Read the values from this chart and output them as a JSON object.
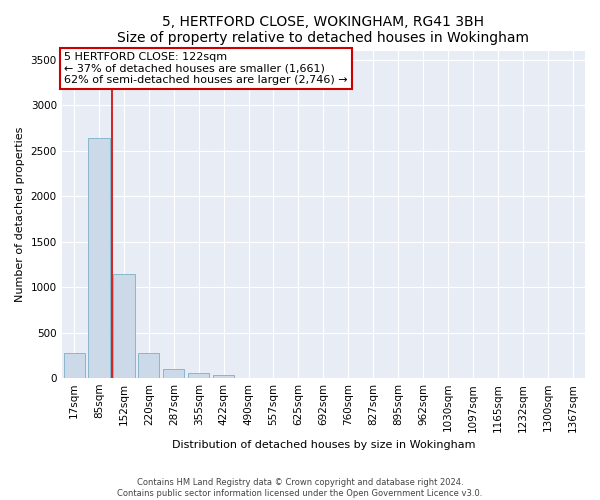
{
  "title": "5, HERTFORD CLOSE, WOKINGHAM, RG41 3BH",
  "subtitle": "Size of property relative to detached houses in Wokingham",
  "xlabel": "Distribution of detached houses by size in Wokingham",
  "ylabel": "Number of detached properties",
  "categories": [
    "17sqm",
    "85sqm",
    "152sqm",
    "220sqm",
    "287sqm",
    "355sqm",
    "422sqm",
    "490sqm",
    "557sqm",
    "625sqm",
    "692sqm",
    "760sqm",
    "827sqm",
    "895sqm",
    "962sqm",
    "1030sqm",
    "1097sqm",
    "1165sqm",
    "1232sqm",
    "1300sqm",
    "1367sqm"
  ],
  "bar_heights": [
    280,
    2640,
    1140,
    280,
    95,
    55,
    30,
    0,
    0,
    0,
    0,
    0,
    0,
    0,
    0,
    0,
    0,
    0,
    0,
    0,
    0
  ],
  "bar_color": "#ccd9e8",
  "bar_edge_color": "#7aafc8",
  "vline_color": "#cc0000",
  "vline_x": 1.5,
  "annotation_text_line1": "5 HERTFORD CLOSE: 122sqm",
  "annotation_text_line2": "← 37% of detached houses are smaller (1,661)",
  "annotation_text_line3": "62% of semi-detached houses are larger (2,746) →",
  "annotation_box_facecolor": "#ffffff",
  "annotation_box_edgecolor": "#cc0000",
  "ylim": [
    0,
    3600
  ],
  "yticks": [
    0,
    500,
    1000,
    1500,
    2000,
    2500,
    3000,
    3500
  ],
  "plot_bg_color": "#e8edf5",
  "grid_color": "#ffffff",
  "footer_line1": "Contains HM Land Registry data © Crown copyright and database right 2024.",
  "footer_line2": "Contains public sector information licensed under the Open Government Licence v3.0.",
  "title_fontsize": 10,
  "ylabel_fontsize": 8,
  "xlabel_fontsize": 8,
  "tick_fontsize": 7.5,
  "annotation_fontsize": 8,
  "footer_fontsize": 6
}
